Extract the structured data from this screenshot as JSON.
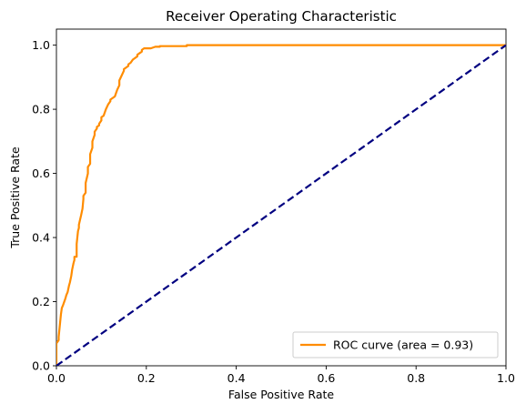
{
  "chart_data": {
    "type": "line",
    "title": "Receiver Operating Characteristic",
    "xlabel": "False Positive Rate",
    "ylabel": "True Positive Rate",
    "xlim": [
      0.0,
      1.0
    ],
    "ylim": [
      0.0,
      1.05
    ],
    "xticks": [
      "0.0",
      "0.2",
      "0.4",
      "0.6",
      "0.8",
      "1.0"
    ],
    "yticks": [
      "0.0",
      "0.2",
      "0.4",
      "0.6",
      "0.8",
      "1.0"
    ],
    "grid": false,
    "legend_position": "lower-right",
    "series": [
      {
        "name": "ROC curve (area = 0.93)",
        "color": "#ff8c00",
        "style": "solid",
        "x": [
          0.0,
          0.0,
          0.005,
          0.005,
          0.01,
          0.012,
          0.015,
          0.02,
          0.022,
          0.025,
          0.028,
          0.03,
          0.033,
          0.035,
          0.038,
          0.04,
          0.04,
          0.045,
          0.045,
          0.048,
          0.05,
          0.05,
          0.055,
          0.058,
          0.06,
          0.06,
          0.065,
          0.065,
          0.07,
          0.07,
          0.075,
          0.075,
          0.08,
          0.08,
          0.085,
          0.085,
          0.09,
          0.09,
          0.095,
          0.095,
          0.1,
          0.1,
          0.105,
          0.11,
          0.115,
          0.12,
          0.12,
          0.125,
          0.13,
          0.135,
          0.14,
          0.14,
          0.145,
          0.15,
          0.15,
          0.155,
          0.16,
          0.16,
          0.165,
          0.17,
          0.175,
          0.18,
          0.18,
          0.185,
          0.19,
          0.19,
          0.195,
          0.2,
          0.205,
          0.205,
          0.21,
          0.22,
          0.23,
          0.23,
          0.25,
          0.29,
          0.29,
          0.5,
          0.8,
          1.0
        ],
        "y": [
          0.0,
          0.07,
          0.08,
          0.09,
          0.16,
          0.18,
          0.19,
          0.21,
          0.22,
          0.23,
          0.25,
          0.26,
          0.28,
          0.3,
          0.32,
          0.33,
          0.34,
          0.34,
          0.38,
          0.42,
          0.43,
          0.44,
          0.47,
          0.49,
          0.52,
          0.53,
          0.54,
          0.57,
          0.6,
          0.62,
          0.63,
          0.66,
          0.68,
          0.7,
          0.72,
          0.73,
          0.74,
          0.745,
          0.75,
          0.755,
          0.765,
          0.775,
          0.78,
          0.8,
          0.815,
          0.825,
          0.83,
          0.835,
          0.84,
          0.86,
          0.875,
          0.89,
          0.905,
          0.92,
          0.925,
          0.93,
          0.935,
          0.94,
          0.945,
          0.955,
          0.96,
          0.965,
          0.97,
          0.975,
          0.98,
          0.985,
          0.99,
          0.99,
          0.99,
          0.99,
          0.99,
          0.995,
          0.995,
          0.997,
          0.997,
          0.997,
          1.0,
          1.0,
          1.0,
          1.0
        ]
      },
      {
        "name": "",
        "color": "#000080",
        "style": "dashed",
        "x": [
          0.0,
          1.0
        ],
        "y": [
          0.0,
          1.0
        ]
      }
    ]
  }
}
